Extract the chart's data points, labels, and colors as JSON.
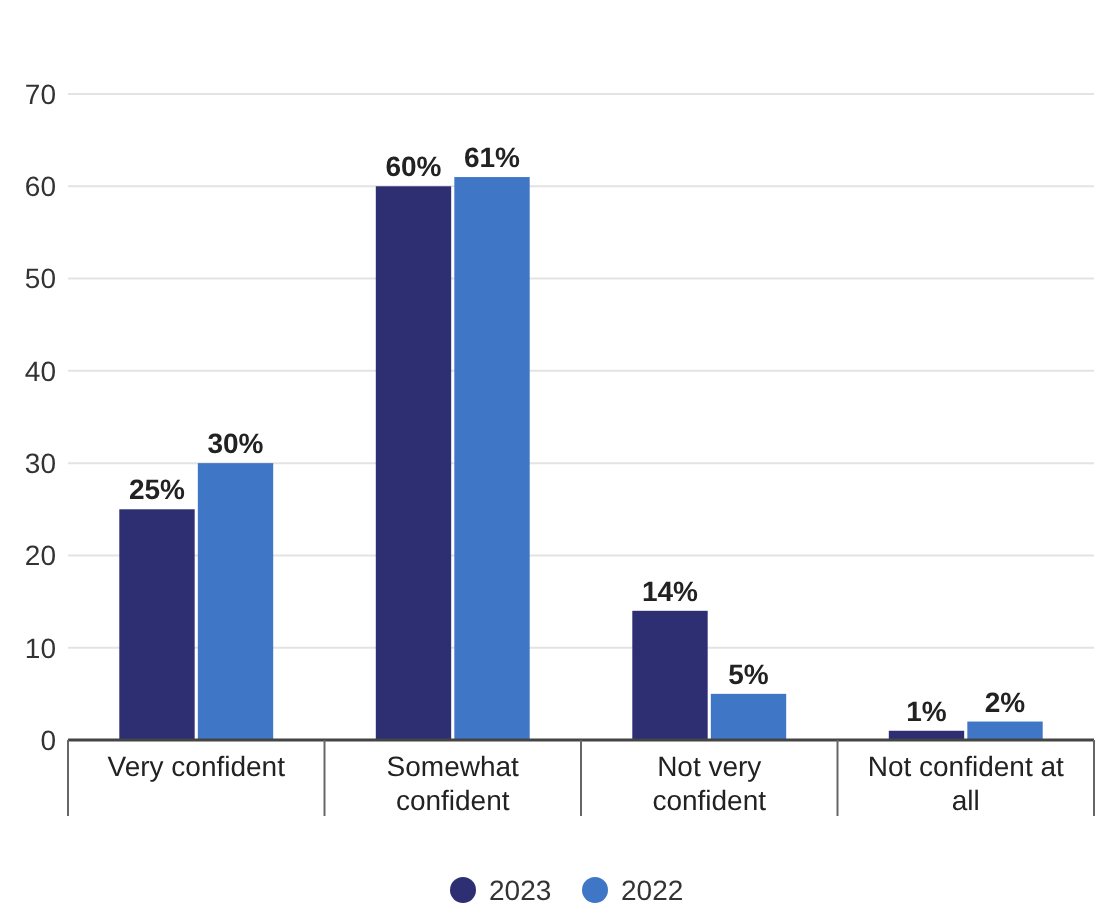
{
  "chart_data": {
    "type": "bar",
    "categories": [
      "Very confident",
      "Somewhat confident",
      "Not very confident",
      "Not confident at all"
    ],
    "series": [
      {
        "name": "2023",
        "color": "#2e2f72",
        "values": [
          25,
          60,
          14,
          1
        ],
        "value_labels": [
          "25%",
          "60%",
          "14%",
          "1%"
        ]
      },
      {
        "name": "2022",
        "color": "#3f77c6",
        "values": [
          30,
          61,
          5,
          2
        ],
        "value_labels": [
          "30%",
          "61%",
          "5%",
          "2%"
        ]
      }
    ],
    "ylim": [
      0,
      70
    ],
    "yticks": [
      0,
      10,
      20,
      30,
      40,
      50,
      60,
      70
    ],
    "grid": "y",
    "legend": "bottom"
  }
}
